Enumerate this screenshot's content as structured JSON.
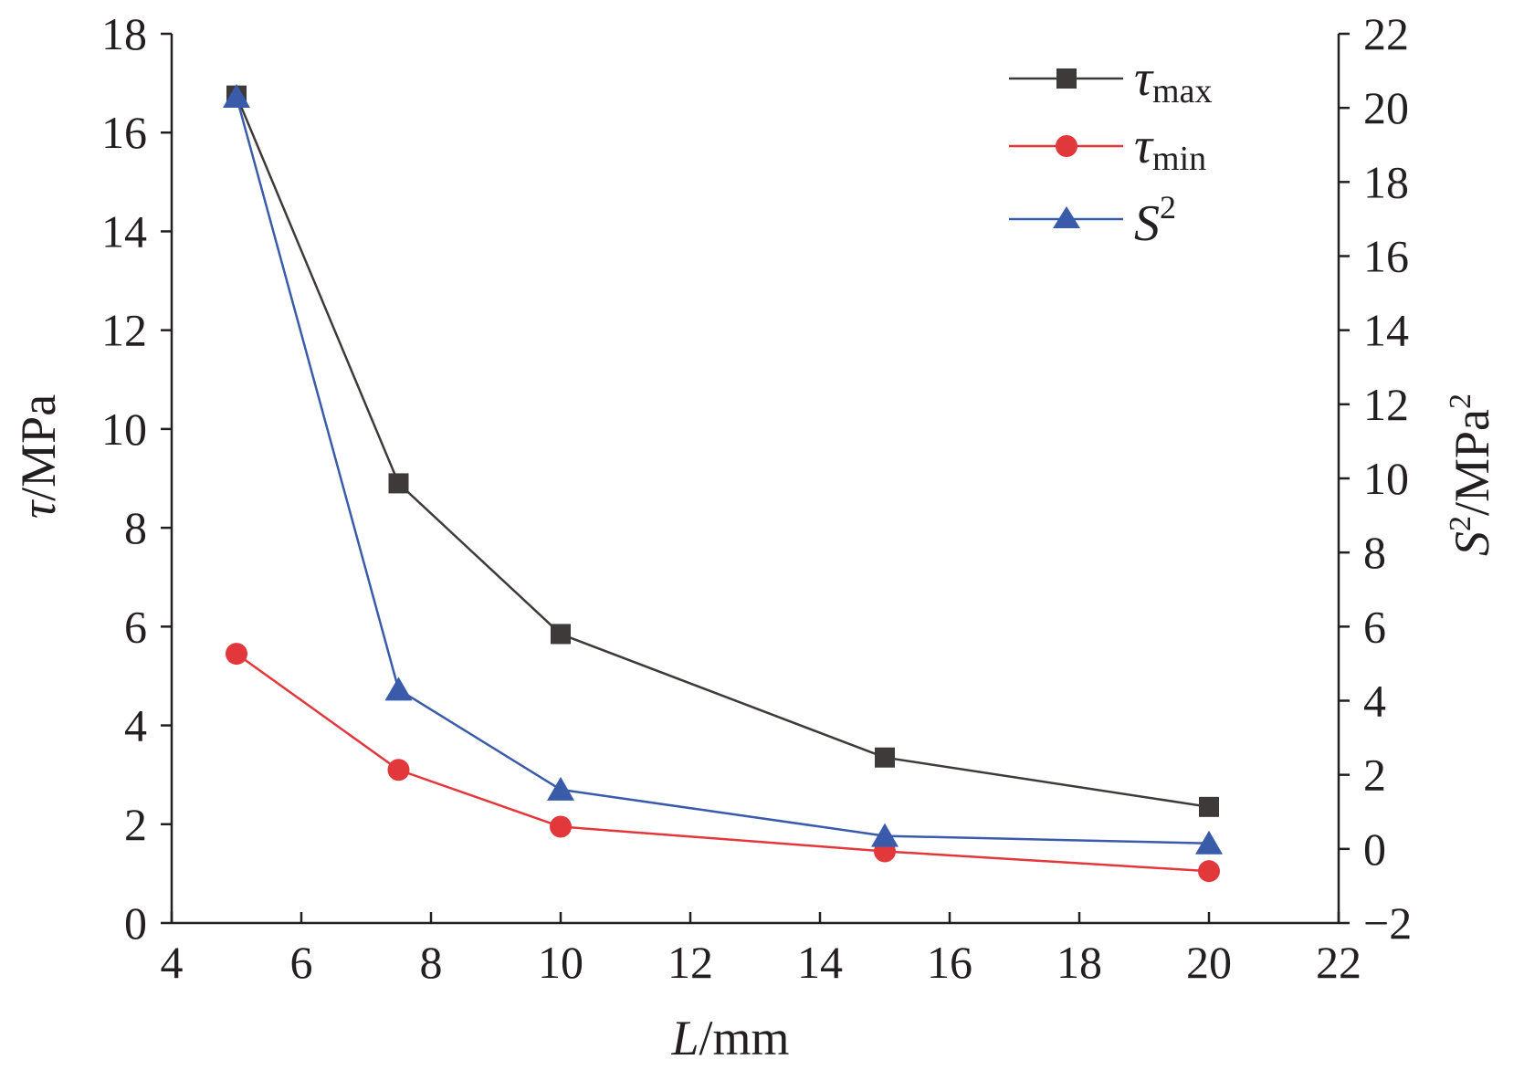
{
  "chart_data": {
    "type": "line",
    "x_axis": {
      "label_var": "L",
      "label_unit": "/mm",
      "range": [
        4,
        22
      ],
      "ticks": [
        4,
        6,
        8,
        10,
        12,
        14,
        16,
        18,
        20,
        22
      ]
    },
    "y_axis_left": {
      "label_var": "τ",
      "label_unit": "/MPa",
      "range": [
        0,
        18
      ],
      "ticks": [
        0,
        2,
        4,
        6,
        8,
        10,
        12,
        14,
        16,
        18
      ]
    },
    "y_axis_right": {
      "label_var": "S",
      "label_sup": "2",
      "label_unit": "/MPa",
      "label_unit_sup": "2",
      "range": [
        -2,
        22
      ],
      "ticks": [
        -2,
        0,
        2,
        4,
        6,
        8,
        10,
        12,
        14,
        16,
        18,
        20,
        22
      ]
    },
    "x": [
      5,
      7.5,
      10,
      15,
      20
    ],
    "series": [
      {
        "key": "tmax",
        "name_main": "τ",
        "name_sub": "max",
        "axis": "left",
        "color": "#3e3a39",
        "marker": "square",
        "values": [
          16.75,
          8.9,
          5.85,
          3.35,
          2.35
        ]
      },
      {
        "key": "tmin",
        "name_main": "τ",
        "name_sub": "min",
        "axis": "left",
        "color": "#e2373b",
        "marker": "circle",
        "values": [
          5.45,
          3.1,
          1.95,
          1.45,
          1.05
        ]
      },
      {
        "key": "s2",
        "name_main": "S",
        "name_sup": "2",
        "axis": "right",
        "color": "#3a5ba9",
        "marker": "triangle",
        "values": [
          20.3,
          4.3,
          1.6,
          0.35,
          0.15
        ]
      }
    ],
    "legend_position": "top-right",
    "grid": false
  }
}
